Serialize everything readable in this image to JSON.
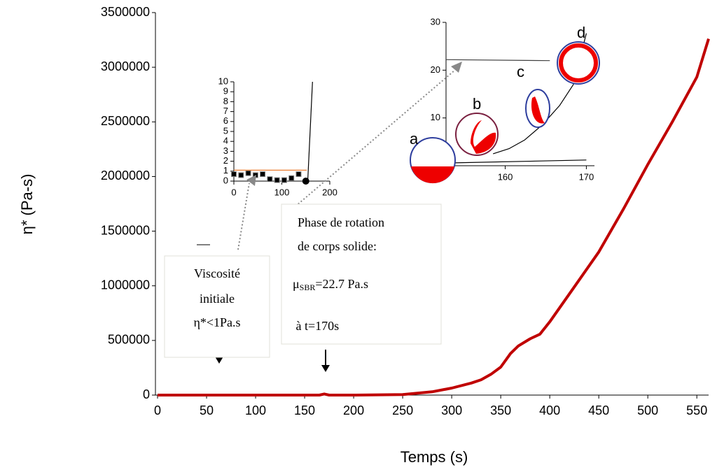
{
  "chart_data": [
    {
      "type": "line",
      "x_label": "Temps (s)",
      "y_label": "η* (Pa-s)",
      "xlim": [
        0,
        562
      ],
      "ylim": [
        0,
        3500000
      ],
      "xticks": [
        0,
        50,
        100,
        150,
        200,
        250,
        300,
        350,
        400,
        450,
        500,
        550
      ],
      "yticks": [
        0,
        500000,
        1000000,
        1500000,
        2000000,
        2500000,
        3000000,
        3500000
      ],
      "series": [
        {
          "name": "η*",
          "color": "#c00000",
          "mode": "line",
          "x": [
            0,
            50,
            100,
            150,
            165,
            170,
            175,
            200,
            250,
            280,
            300,
            320,
            330,
            340,
            350,
            360,
            368,
            380,
            390,
            400,
            425,
            450,
            475,
            500,
            525,
            550,
            562
          ],
          "values": [
            0,
            0,
            0,
            0,
            0,
            10000,
            0,
            0,
            5000,
            30000,
            64000,
            110000,
            140000,
            190000,
            256000,
            380000,
            450000,
            515000,
            557000,
            670000,
            990000,
            1310000,
            1700000,
            2110000,
            2500000,
            2910000,
            3260000
          ]
        }
      ],
      "annotations": {
        "box1": [
          "Viscosité",
          "initiale",
          "η*<1Pa.s"
        ],
        "box2": {
          "line1": "Phase de rotation",
          "line2": "de corps solide:",
          "mu": "μ",
          "sub": "SBR",
          "rest": "=22.7 Pa.s",
          "line4": " à t=170s"
        }
      }
    },
    {
      "type": "line",
      "xlim": [
        0,
        200
      ],
      "ylim": [
        0,
        10
      ],
      "xticks": [
        0,
        100,
        200
      ],
      "yticks": [
        0,
        1,
        2,
        3,
        4,
        5,
        6,
        7,
        8,
        9,
        10
      ],
      "series": [
        {
          "color": "#000000",
          "mode": "markers",
          "x": [
            0,
            15,
            30,
            45,
            60,
            75,
            90,
            105,
            120,
            135
          ],
          "values": [
            0.7,
            0.6,
            0.8,
            0.6,
            0.7,
            0.2,
            0.1,
            0.1,
            0.3,
            0.7
          ]
        },
        {
          "color": "#000000",
          "mode": "circle",
          "x": [
            150
          ],
          "values": [
            0
          ]
        },
        {
          "color": "#ed7d31",
          "mode": "line",
          "x": [
            0,
            152
          ],
          "values": [
            1.1,
            1.1
          ]
        },
        {
          "color": "#000000",
          "mode": "line",
          "x": [
            150,
            154,
            164
          ],
          "values": [
            0,
            0,
            10
          ]
        }
      ]
    },
    {
      "type": "line",
      "xlim": [
        152.7,
        171
      ],
      "ylim": [
        0,
        30
      ],
      "xticks": [
        160,
        170
      ],
      "yticks": [
        10,
        20,
        30
      ],
      "series": [
        {
          "color": "#404040",
          "mode": "line",
          "x": [
            152.7,
            165.5
          ],
          "values": [
            22.2,
            22.0
          ]
        },
        {
          "color": "#000000",
          "mode": "line",
          "x": [
            153.7,
            170
          ],
          "values": [
            0.6,
            1.2
          ]
        },
        {
          "color": "#000000",
          "mode": "line",
          "x": [
            158.5,
            160.5,
            162.4,
            164.6,
            166.7,
            168.4,
            170
          ],
          "values": [
            2.5,
            3.6,
            5.4,
            8.6,
            12.6,
            17,
            27.7
          ]
        }
      ],
      "annotations": [
        "a",
        "b",
        "c",
        "d"
      ]
    }
  ]
}
